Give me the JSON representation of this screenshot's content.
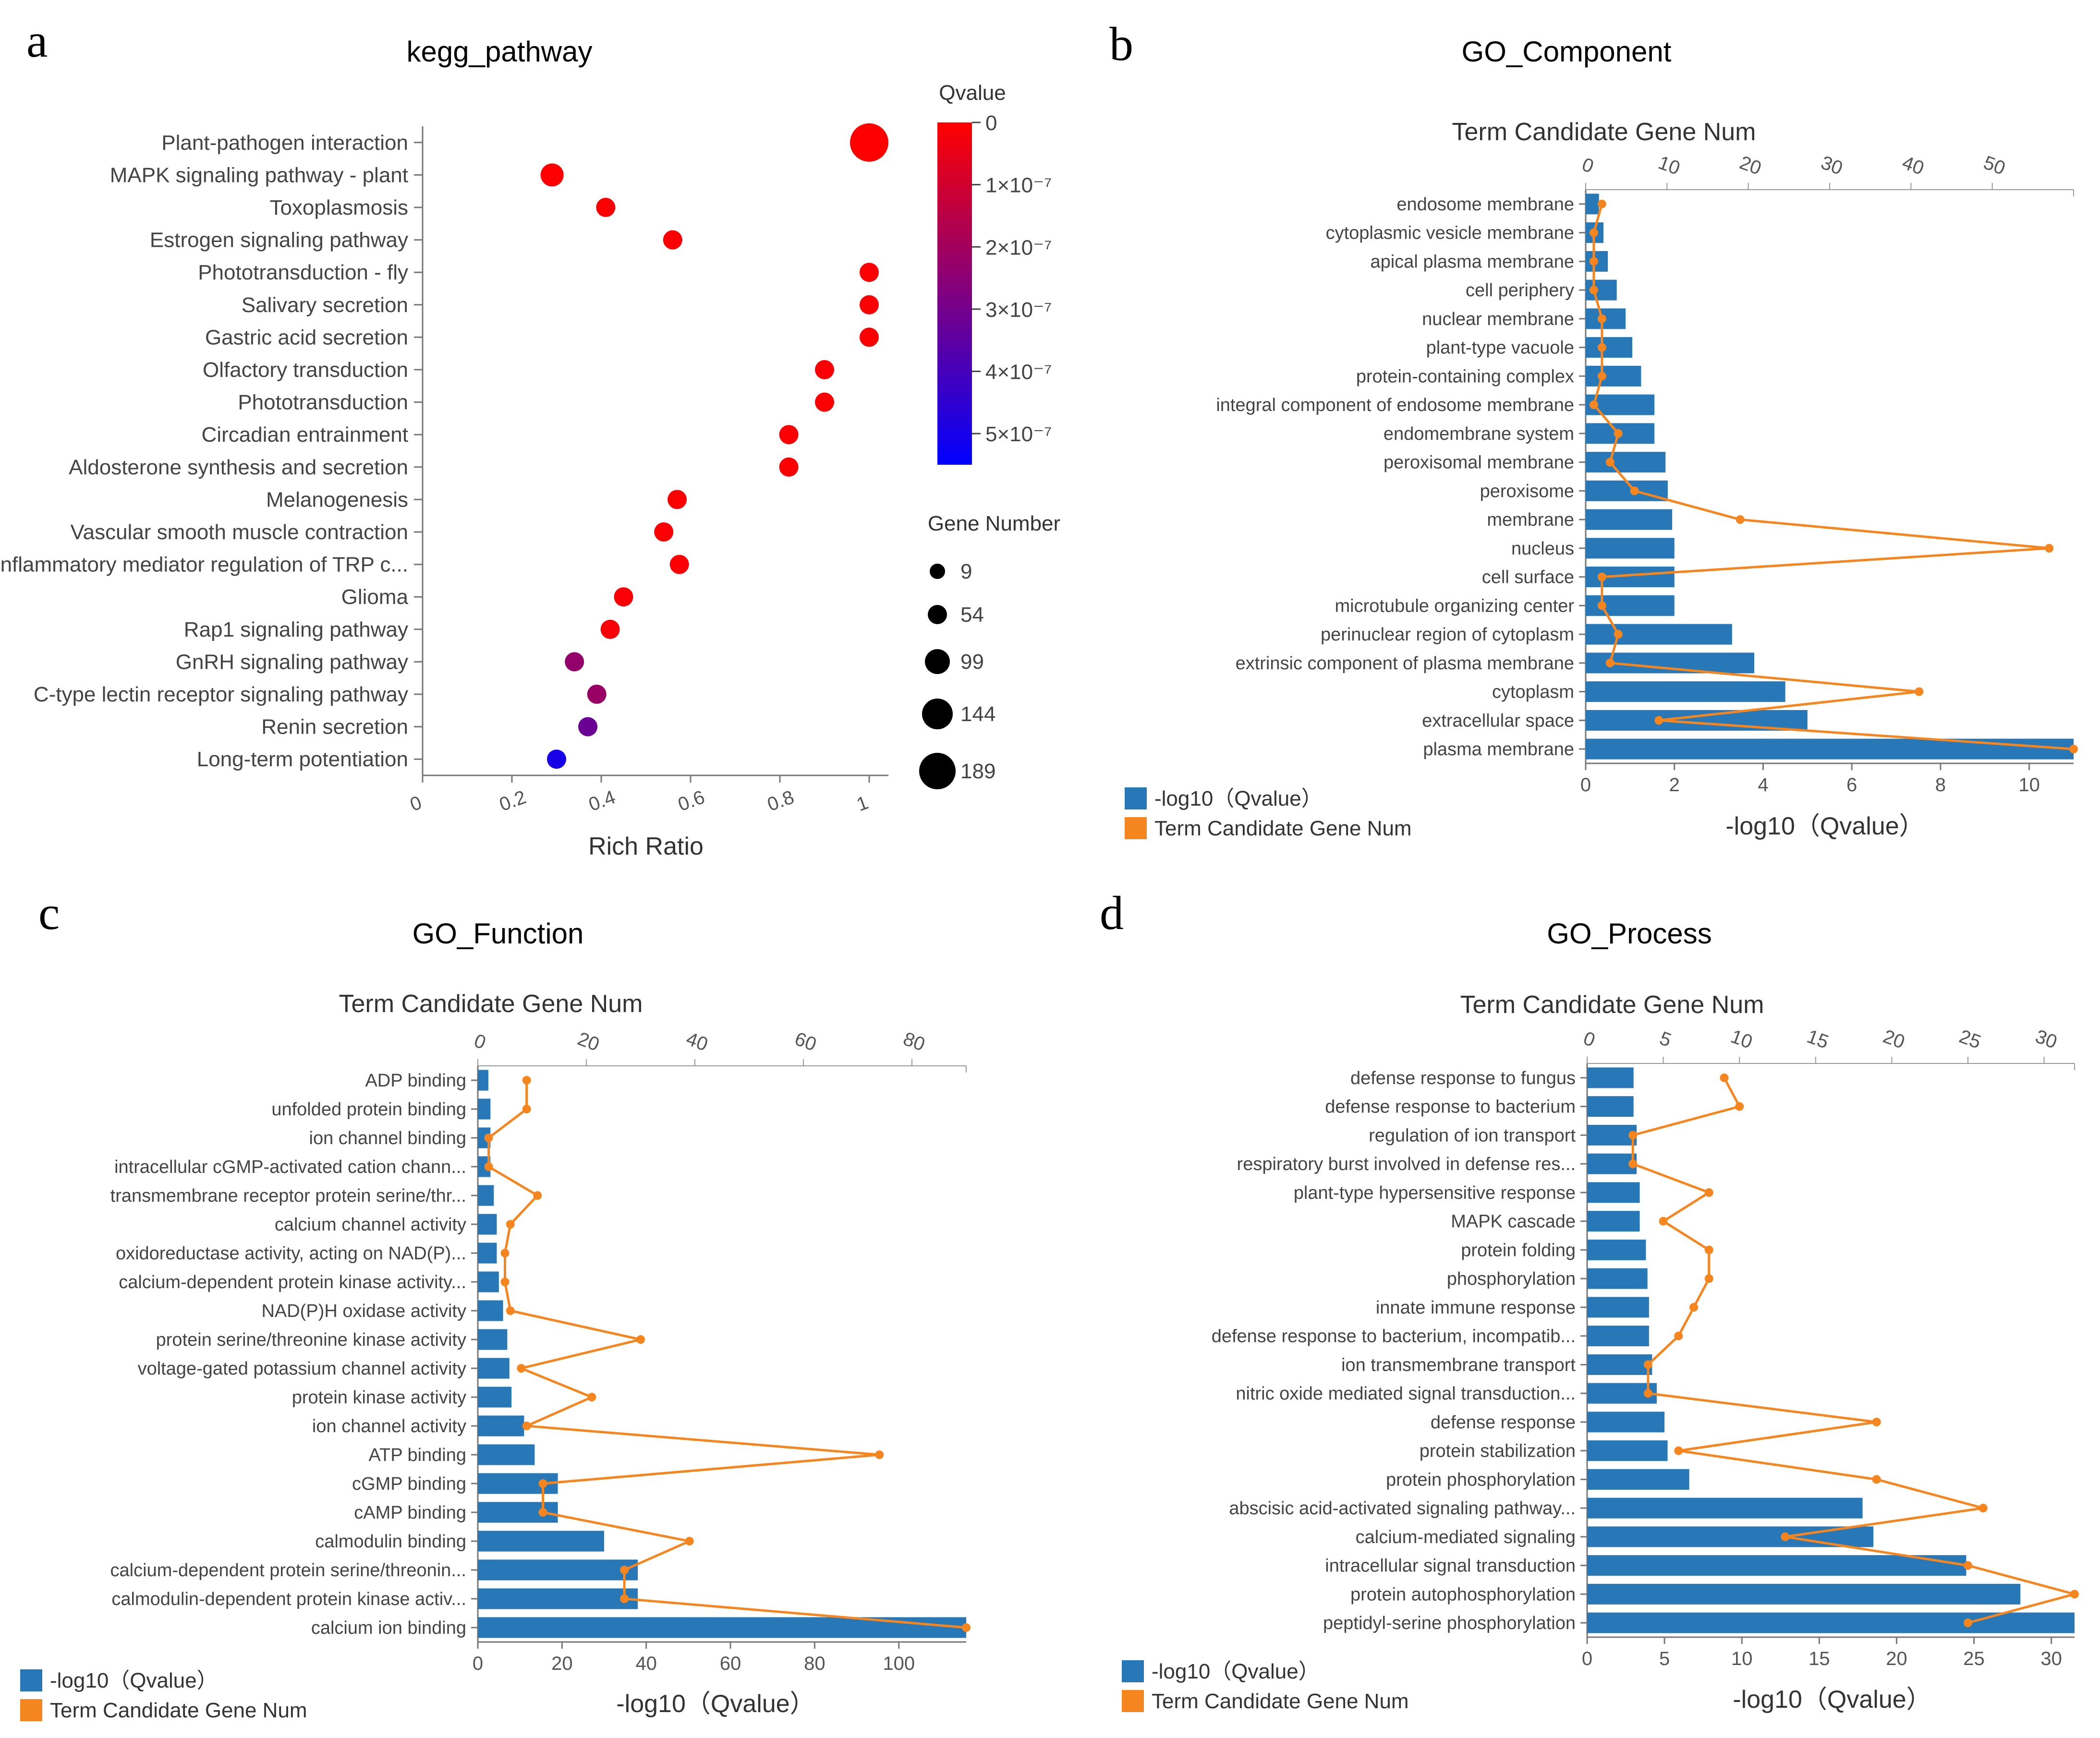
{
  "colors": {
    "bar": "#2878b8",
    "line": "#f5861f",
    "axis": "#777777"
  },
  "chart_data": [
    {
      "id": "a",
      "panel_label": "a",
      "type": "scatter",
      "title": "kegg_pathway",
      "xlabel": "Rich Ratio",
      "xlim": [
        0,
        1
      ],
      "xticks": [
        "0",
        "0.2",
        "0.4",
        "0.6",
        "0.8",
        "1"
      ],
      "colorbar": {
        "title": "Qvalue",
        "range": [
          0,
          5.5e-07
        ],
        "labels": [
          "0",
          "1×10⁻⁷",
          "2×10⁻⁷",
          "3×10⁻⁷",
          "4×10⁻⁷",
          "5×10⁻⁷"
        ],
        "colors": [
          "#ff0000",
          "#0000ff"
        ]
      },
      "size_legend": {
        "title": "Gene Number",
        "values": [
          9,
          54,
          99,
          144,
          189
        ]
      },
      "points": [
        {
          "label": "Plant-pathogen interaction",
          "x": 1.0,
          "size": 189,
          "q": 0
        },
        {
          "label": "MAPK signaling pathway - plant",
          "x": 0.29,
          "size": 54,
          "q": 2e-09
        },
        {
          "label": "Toxoplasmosis",
          "x": 0.41,
          "size": 40,
          "q": 1e-08
        },
        {
          "label": "Estrogen signaling pathway",
          "x": 0.56,
          "size": 30,
          "q": 1e-08
        },
        {
          "label": "Phototransduction - fly",
          "x": 1.0,
          "size": 25,
          "q": 1e-08
        },
        {
          "label": "Salivary secretion",
          "x": 1.0,
          "size": 25,
          "q": 1e-08
        },
        {
          "label": "Gastric acid secretion",
          "x": 1.0,
          "size": 25,
          "q": 1e-08
        },
        {
          "label": "Olfactory transduction",
          "x": 0.9,
          "size": 25,
          "q": 1e-08
        },
        {
          "label": "Phototransduction",
          "x": 0.9,
          "size": 25,
          "q": 1e-08
        },
        {
          "label": "Circadian entrainment",
          "x": 0.82,
          "size": 25,
          "q": 1e-08
        },
        {
          "label": "Aldosterone synthesis and secretion",
          "x": 0.82,
          "size": 25,
          "q": 1e-08
        },
        {
          "label": "Melanogenesis",
          "x": 0.57,
          "size": 25,
          "q": 1e-08
        },
        {
          "label": "Vascular smooth muscle contraction",
          "x": 0.54,
          "size": 25,
          "q": 1e-08
        },
        {
          "label": "Inflammatory mediator regulation of TRP c...",
          "x": 0.575,
          "size": 25,
          "q": 1e-08
        },
        {
          "label": "Glioma",
          "x": 0.45,
          "size": 25,
          "q": 1e-08
        },
        {
          "label": "Rap1 signaling pathway",
          "x": 0.42,
          "size": 25,
          "q": 2e-08
        },
        {
          "label": "GnRH signaling pathway",
          "x": 0.34,
          "size": 25,
          "q": 2.3e-07
        },
        {
          "label": "C-type lectin receptor signaling pathway",
          "x": 0.39,
          "size": 25,
          "q": 2.2e-07
        },
        {
          "label": "Renin secretion",
          "x": 0.37,
          "size": 25,
          "q": 3.2e-07
        },
        {
          "label": "Long-term potentiation",
          "x": 0.3,
          "size": 25,
          "q": 5e-07
        }
      ]
    },
    {
      "id": "b",
      "panel_label": "b",
      "type": "bar",
      "title": "GO_Component",
      "top_axis_label": "Term Candidate Gene Num",
      "xlabel": "-log10（Qvalue）",
      "bottom_ticks": [
        "0",
        "2",
        "4",
        "6",
        "8",
        "10"
      ],
      "bottom_max": 11,
      "top_ticks": [
        "0",
        "10",
        "20",
        "30",
        "40",
        "50"
      ],
      "top_max": 60,
      "legend": [
        "-log10（Qvalue）",
        "Term Candidate Gene Num"
      ],
      "categories": [
        "endosome membrane",
        "cytoplasmic vesicle membrane",
        "apical plasma membrane",
        "cell periphery",
        "nuclear membrane",
        "plant-type vacuole",
        "protein-containing complex",
        "integral component of endosome membrane",
        "endomembrane system",
        "peroxisomal membrane",
        "peroxisome",
        "membrane",
        "nucleus",
        "cell surface",
        "microtubule organizing center",
        "perinuclear region of cytoplasm",
        "extrinsic component of plasma membrane",
        "cytoplasm",
        "extracellular space",
        "plasma membrane"
      ],
      "bar_values": [
        0.3,
        0.4,
        0.5,
        0.7,
        0.9,
        1.05,
        1.25,
        1.55,
        1.55,
        1.8,
        1.85,
        1.95,
        2.0,
        2.0,
        2.0,
        3.3,
        3.8,
        4.5,
        5.0,
        11.0
      ],
      "line_values": [
        2,
        1,
        1,
        1,
        2,
        2,
        2,
        1,
        4,
        3,
        6,
        19,
        57,
        2,
        2,
        4,
        3,
        41,
        9,
        60
      ]
    },
    {
      "id": "c",
      "panel_label": "c",
      "type": "bar",
      "title": "GO_Function",
      "top_axis_label": "Term Candidate Gene Num",
      "xlabel": "-log10（Qvalue）",
      "bottom_ticks": [
        "0",
        "20",
        "40",
        "60",
        "80",
        "100"
      ],
      "bottom_max": 116,
      "top_ticks": [
        "0",
        "20",
        "40",
        "60",
        "80"
      ],
      "top_max": 90,
      "legend": [
        "-log10（Qvalue）",
        "Term Candidate Gene Num"
      ],
      "categories": [
        "ADP binding",
        "unfolded protein binding",
        "ion channel binding",
        "intracellular cGMP-activated cation chann...",
        "transmembrane receptor protein serine/thr...",
        "calcium channel activity",
        "oxidoreductase activity, acting on NAD(P)...",
        "calcium-dependent protein kinase activity...",
        "NAD(P)H oxidase activity",
        "protein serine/threonine kinase activity",
        "voltage-gated potassium channel activity",
        "protein kinase activity",
        "ion channel activity",
        "ATP binding",
        "cGMP binding",
        "cAMP binding",
        "calmodulin binding",
        "calcium-dependent protein serine/threonin...",
        "calmodulin-dependent protein kinase activ...",
        "calcium ion binding"
      ],
      "bar_values": [
        2.5,
        3.0,
        3.0,
        3.0,
        3.8,
        4.5,
        4.5,
        5.0,
        6.0,
        7.0,
        7.5,
        8.0,
        11.0,
        13.5,
        19.0,
        19.0,
        30.0,
        38.0,
        38.0,
        116.0
      ],
      "line_values": [
        9,
        9,
        2,
        2,
        11,
        6,
        5,
        5,
        6,
        30,
        8,
        21,
        9,
        74,
        12,
        12,
        39,
        27,
        27,
        90
      ]
    },
    {
      "id": "d",
      "panel_label": "d",
      "type": "bar",
      "title": "GO_Process",
      "top_axis_label": "Term Candidate Gene Num",
      "xlabel": "-log10（Qvalue）",
      "bottom_ticks": [
        "0",
        "5",
        "10",
        "15",
        "20",
        "25",
        "30"
      ],
      "bottom_max": 31.5,
      "top_ticks": [
        "0",
        "5",
        "10",
        "15",
        "20",
        "25",
        "30"
      ],
      "top_max": 32,
      "legend": [
        "-log10（Qvalue）",
        "Term Candidate Gene Num"
      ],
      "categories": [
        "defense response to fungus",
        "defense response to bacterium",
        "regulation of ion transport",
        "respiratory burst involved in defense res...",
        "plant-type hypersensitive response",
        "MAPK cascade",
        "protein folding",
        "phosphorylation",
        "innate immune response",
        "defense response to bacterium, incompatib...",
        "ion transmembrane transport",
        "nitric oxide mediated signal transduction...",
        "defense response",
        "protein stabilization",
        "protein phosphorylation",
        "abscisic acid-activated signaling pathway...",
        "calcium-mediated signaling",
        "intracellular signal transduction",
        "protein autophosphorylation",
        "peptidyl-serine phosphorylation"
      ],
      "bar_values": [
        3.0,
        3.0,
        3.2,
        3.2,
        3.4,
        3.4,
        3.8,
        3.9,
        4.0,
        4.0,
        4.2,
        4.5,
        5.0,
        5.2,
        6.6,
        17.8,
        18.5,
        24.5,
        28.0,
        31.5
      ],
      "line_values": [
        9,
        10,
        3,
        3,
        8,
        5,
        8,
        8,
        7,
        6,
        4,
        4,
        19,
        6,
        19,
        26,
        13,
        25,
        32,
        25
      ]
    }
  ]
}
